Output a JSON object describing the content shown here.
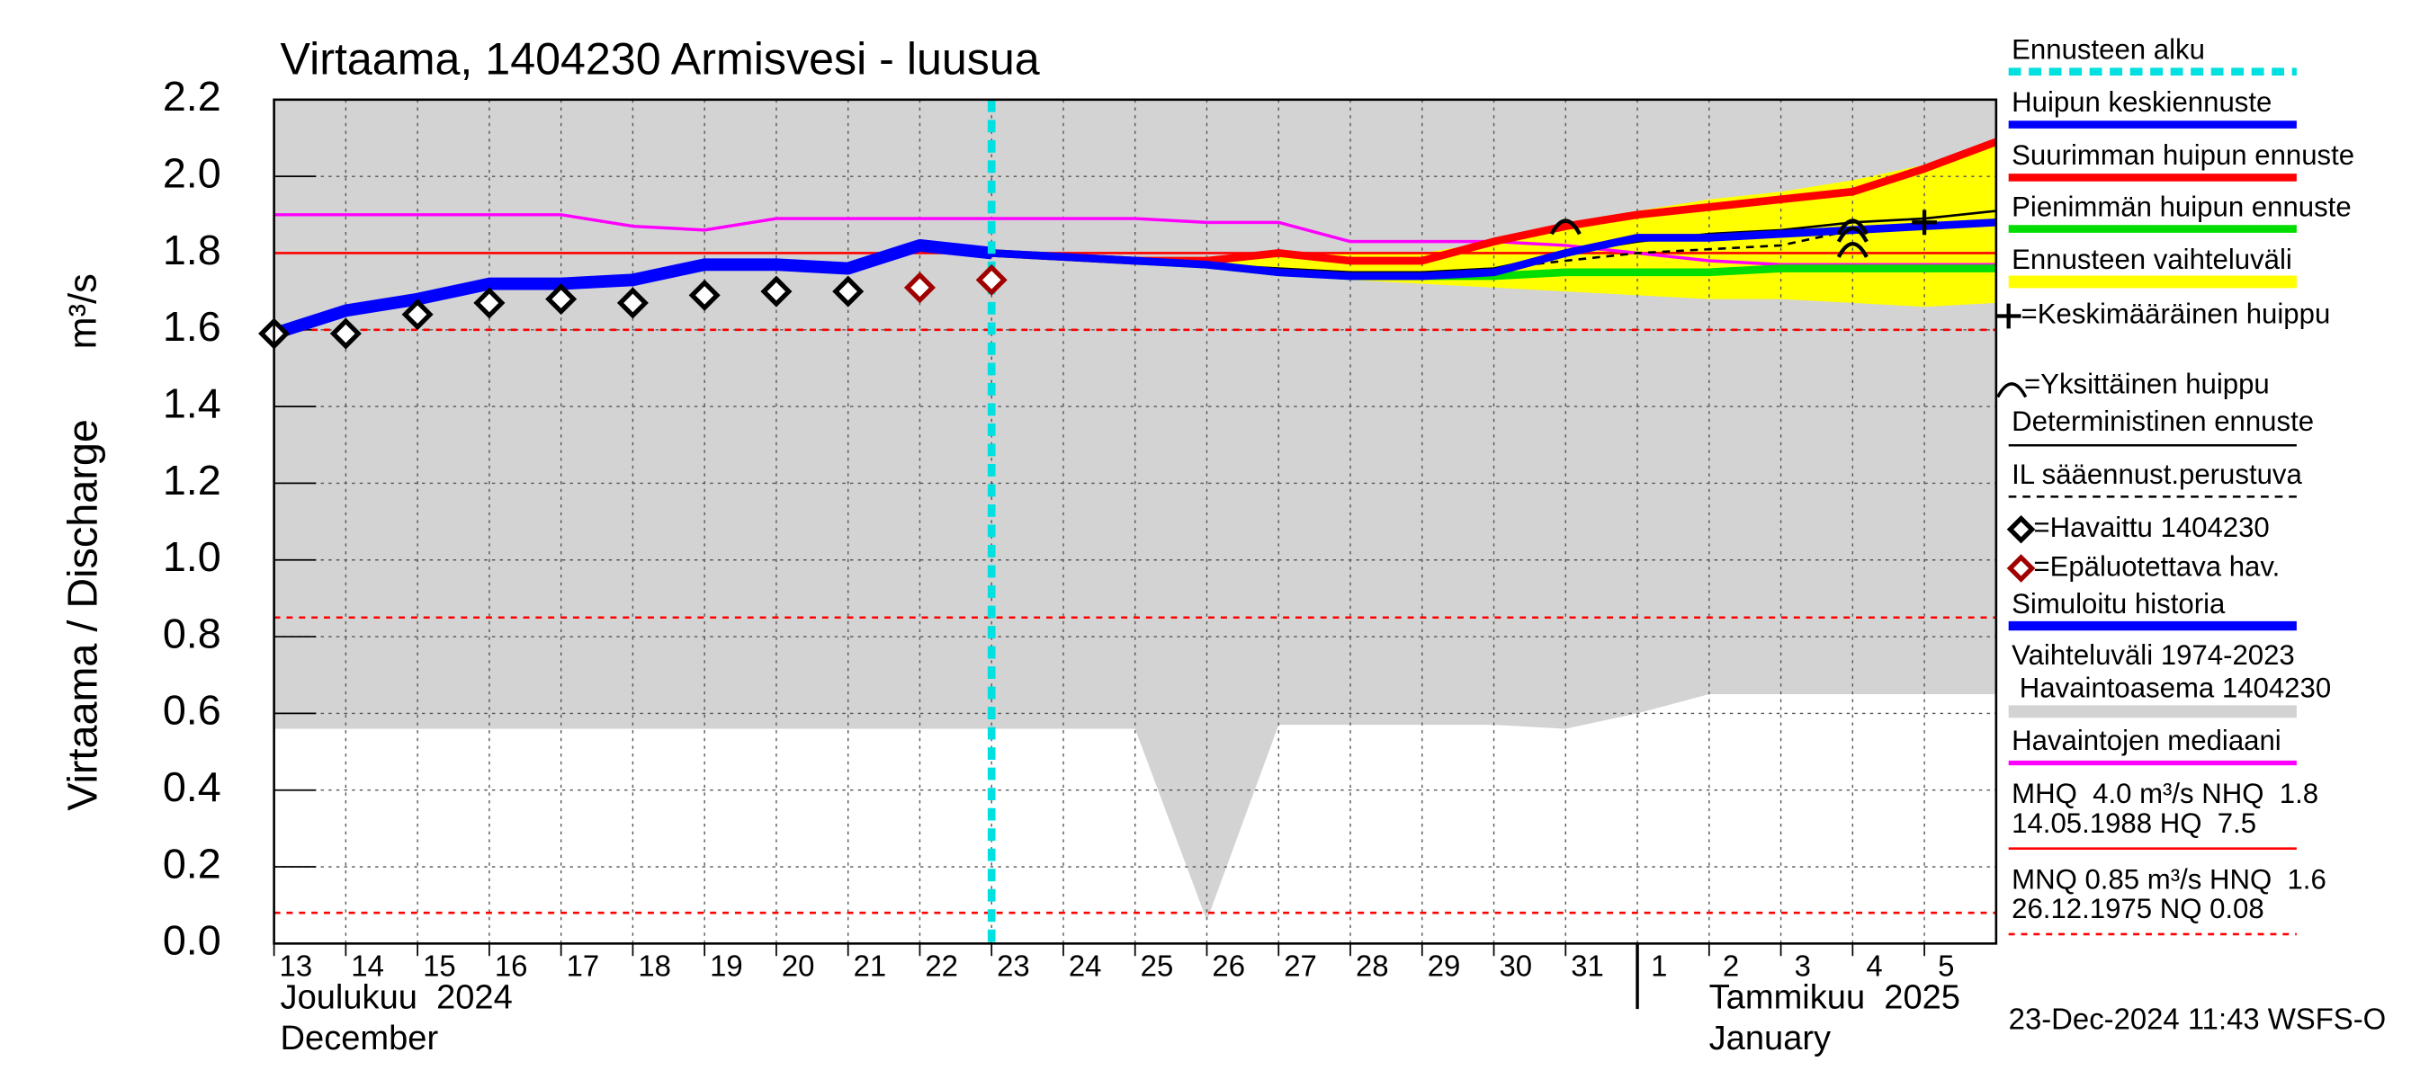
{
  "chart_data": {
    "type": "line",
    "title": "Virtaama, 1404230 Armisvesi - luusua",
    "y_label": "Virtaama / Discharge",
    "y_unit": "m³/s",
    "timestamp": "23-Dec-2024 11:43 WSFS-O",
    "month_labels": [
      {
        "x": "2024-12-13",
        "lines": [
          "Joulukuu  2024",
          "December"
        ]
      },
      {
        "x": "2025-01-01",
        "lines": [
          "Tammikuu  2025",
          "January"
        ]
      }
    ],
    "x": [
      "2024-12-13",
      "2024-12-14",
      "2024-12-15",
      "2024-12-16",
      "2024-12-17",
      "2024-12-18",
      "2024-12-19",
      "2024-12-20",
      "2024-12-21",
      "2024-12-22",
      "2024-12-23",
      "2024-12-24",
      "2024-12-25",
      "2024-12-26",
      "2024-12-27",
      "2024-12-28",
      "2024-12-29",
      "2024-12-30",
      "2024-12-31",
      "2025-01-01",
      "2025-01-02",
      "2025-01-03",
      "2025-01-04",
      "2025-01-05",
      "2025-01-06"
    ],
    "xlim": [
      "2024-12-13",
      "2025-01-06"
    ],
    "xticks": [
      {
        "value": "2024-12-13",
        "label": "13"
      },
      {
        "value": "2024-12-14",
        "label": "14"
      },
      {
        "value": "2024-12-15",
        "label": "15"
      },
      {
        "value": "2024-12-16",
        "label": "16"
      },
      {
        "value": "2024-12-17",
        "label": "17"
      },
      {
        "value": "2024-12-18",
        "label": "18"
      },
      {
        "value": "2024-12-19",
        "label": "19"
      },
      {
        "value": "2024-12-20",
        "label": "20"
      },
      {
        "value": "2024-12-21",
        "label": "21"
      },
      {
        "value": "2024-12-22",
        "label": "22"
      },
      {
        "value": "2024-12-23",
        "label": "23"
      },
      {
        "value": "2024-12-24",
        "label": "24"
      },
      {
        "value": "2024-12-25",
        "label": "25"
      },
      {
        "value": "2024-12-26",
        "label": "26"
      },
      {
        "value": "2024-12-27",
        "label": "27"
      },
      {
        "value": "2024-12-28",
        "label": "28"
      },
      {
        "value": "2024-12-29",
        "label": "29"
      },
      {
        "value": "2024-12-30",
        "label": "30"
      },
      {
        "value": "2024-12-31",
        "label": "31"
      },
      {
        "value": "2025-01-01",
        "label": "1"
      },
      {
        "value": "2025-01-02",
        "label": "2"
      },
      {
        "value": "2025-01-03",
        "label": "3"
      },
      {
        "value": "2025-01-04",
        "label": "4"
      },
      {
        "value": "2025-01-05",
        "label": "5"
      }
    ],
    "ylim": [
      0,
      2.2
    ],
    "yticks": [
      {
        "value": 0,
        "label": "0.0"
      },
      0.2,
      0.4,
      0.6,
      0.8,
      {
        "value": 1,
        "label": "1.0"
      },
      1.2,
      1.4,
      1.6,
      1.8,
      {
        "value": 2,
        "label": "2.0"
      },
      2.2
    ],
    "grid": true,
    "legend_position": "right",
    "forecast_start": {
      "name": "Ennusteen alku",
      "x": "2024-12-23",
      "color": "#00e0e0"
    },
    "series": [
      {
        "name": "Huipun keskiennuste",
        "color": "#0000ff",
        "width": 5,
        "dash": false,
        "style": "line",
        "values": [
          null,
          null,
          null,
          null,
          null,
          null,
          null,
          null,
          null,
          null,
          1.8,
          1.79,
          1.78,
          1.77,
          1.75,
          1.74,
          1.74,
          1.75,
          1.8,
          1.84,
          1.84,
          1.85,
          1.86,
          1.87,
          1.88
        ]
      },
      {
        "name": "Suurimman huipun ennuste",
        "color": "#ff0000",
        "width": 5,
        "dash": false,
        "style": "line",
        "values": [
          null,
          null,
          null,
          null,
          null,
          null,
          null,
          null,
          null,
          null,
          1.8,
          1.79,
          1.78,
          1.78,
          1.8,
          1.78,
          1.78,
          1.83,
          1.87,
          1.9,
          1.92,
          1.94,
          1.96,
          2.02,
          2.09
        ]
      },
      {
        "name": "Pienimmän huipun ennuste",
        "color": "#00dd00",
        "width": 5,
        "dash": false,
        "style": "line",
        "values": [
          null,
          null,
          null,
          null,
          null,
          null,
          null,
          null,
          null,
          null,
          1.8,
          1.79,
          1.78,
          1.77,
          1.75,
          1.74,
          1.74,
          1.74,
          1.75,
          1.75,
          1.75,
          1.76,
          1.76,
          1.76,
          1.76
        ]
      },
      {
        "name": "Deterministinen ennuste",
        "color": "#000000",
        "width": 1.5,
        "dash": false,
        "style": "line",
        "values": [
          null,
          null,
          null,
          null,
          null,
          null,
          null,
          null,
          null,
          null,
          1.8,
          1.79,
          1.78,
          1.77,
          1.76,
          1.75,
          1.75,
          1.76,
          1.8,
          1.83,
          1.85,
          1.86,
          1.88,
          1.89,
          1.91
        ]
      },
      {
        "name": "IL sääennust.perustuva",
        "color": "#000000",
        "width": 1.5,
        "dash": true,
        "style": "line",
        "values": [
          null,
          null,
          null,
          null,
          null,
          null,
          null,
          null,
          null,
          null,
          1.8,
          1.79,
          1.78,
          1.77,
          1.75,
          1.74,
          1.74,
          1.76,
          1.78,
          1.8,
          1.81,
          1.82,
          1.86,
          1.87,
          1.88
        ]
      },
      {
        "name": "=Havaittu 1404230",
        "color": "#000000",
        "style": "marker",
        "values": [
          1.59,
          1.59,
          1.64,
          1.67,
          1.68,
          1.67,
          1.69,
          1.7,
          1.7,
          null,
          null,
          null,
          null,
          null,
          null,
          null,
          null,
          null,
          null,
          null,
          null,
          null,
          null,
          null,
          null
        ]
      },
      {
        "name": "=Epäluotettava hav.",
        "color": "#a00000",
        "style": "marker",
        "values": [
          null,
          null,
          null,
          null,
          null,
          null,
          null,
          null,
          null,
          1.71,
          1.73,
          null,
          null,
          null,
          null,
          null,
          null,
          null,
          null,
          null,
          null,
          null,
          null,
          null,
          null
        ]
      },
      {
        "name": "Simuloitu historia",
        "color": "#0000ff",
        "width": 8,
        "dash": false,
        "style": "line",
        "values": [
          1.59,
          1.65,
          1.68,
          1.72,
          1.72,
          1.73,
          1.77,
          1.77,
          1.76,
          1.82,
          1.8,
          null,
          null,
          null,
          null,
          null,
          null,
          null,
          null,
          null,
          null,
          null,
          null,
          null,
          null
        ]
      },
      {
        "name": "Havaintojen mediaani",
        "color": "#ff00ff",
        "width": 2,
        "dash": false,
        "style": "line",
        "values": [
          1.9,
          1.9,
          1.9,
          1.9,
          1.9,
          1.87,
          1.86,
          1.89,
          1.89,
          1.89,
          1.89,
          1.89,
          1.89,
          1.88,
          1.88,
          1.83,
          1.83,
          1.83,
          1.82,
          1.8,
          1.78,
          1.77,
          1.77,
          1.77,
          1.77
        ]
      }
    ],
    "bands": [
      {
        "name": [
          "Ennusteen vaihteluväli"
        ],
        "color": "#ffff00",
        "lower": [
          null,
          null,
          null,
          null,
          null,
          null,
          null,
          null,
          null,
          null,
          1.8,
          1.79,
          1.78,
          1.76,
          1.75,
          1.73,
          1.72,
          1.71,
          1.7,
          1.69,
          1.68,
          1.68,
          1.67,
          1.66,
          1.67
        ],
        "upper": [
          null,
          null,
          null,
          null,
          null,
          null,
          null,
          null,
          null,
          null,
          1.8,
          1.79,
          1.79,
          1.79,
          1.8,
          1.8,
          1.8,
          1.83,
          1.88,
          1.91,
          1.94,
          1.96,
          1.99,
          2.03,
          2.09
        ]
      },
      {
        "name": [
          "Vaihteluväli 1974-2023",
          " Havaintoasema 1404230"
        ],
        "color": "#d3d3d3",
        "lower": [
          0.56,
          0.56,
          0.56,
          0.56,
          0.56,
          0.56,
          0.56,
          0.56,
          0.56,
          0.56,
          0.56,
          0.56,
          0.56,
          0.06,
          0.57,
          0.57,
          0.57,
          0.57,
          0.56,
          0.6,
          0.65,
          0.65,
          0.65,
          0.65,
          0.65
        ],
        "upper": [
          2.2,
          2.2,
          2.2,
          2.2,
          2.2,
          2.2,
          2.2,
          2.2,
          2.2,
          2.2,
          2.2,
          2.2,
          2.2,
          2.2,
          2.2,
          2.2,
          2.2,
          2.2,
          2.2,
          2.2,
          2.2,
          2.2,
          2.2,
          2.2,
          2.2
        ]
      }
    ],
    "peaks": [
      {
        "name": "=Keskimääräinen huippu",
        "symbol": "plus",
        "x": [
          "2025-01-05"
        ],
        "values": [
          1.88
        ]
      },
      {
        "name": "=Yksittäinen huippu",
        "symbol": "arc",
        "x": [
          "2024-12-31",
          "2025-01-04",
          "2025-01-04",
          "2025-01-04"
        ],
        "values": [
          1.87,
          1.87,
          1.85,
          1.81
        ]
      }
    ],
    "reference_lines": [
      {
        "value": 1.8,
        "color": "#ff0000",
        "dash": false
      },
      {
        "value": 1.6,
        "color": "#ff0000",
        "dash": true
      },
      {
        "value": 0.85,
        "color": "#ff0000",
        "dash": true
      },
      {
        "value": 0.08,
        "color": "#ff0000",
        "dash": true
      }
    ],
    "legend_notes": [
      {
        "lines": [
          "MHQ  4.0 m³/s NHQ  1.8",
          "14.05.1988 HQ  7.5"
        ],
        "color": "#ff0000",
        "dash": false
      },
      {
        "lines": [
          "MNQ 0.85 m³/s HNQ  1.6",
          "26.12.1975 NQ 0.08"
        ],
        "color": "#ff0000",
        "dash": true
      }
    ]
  }
}
